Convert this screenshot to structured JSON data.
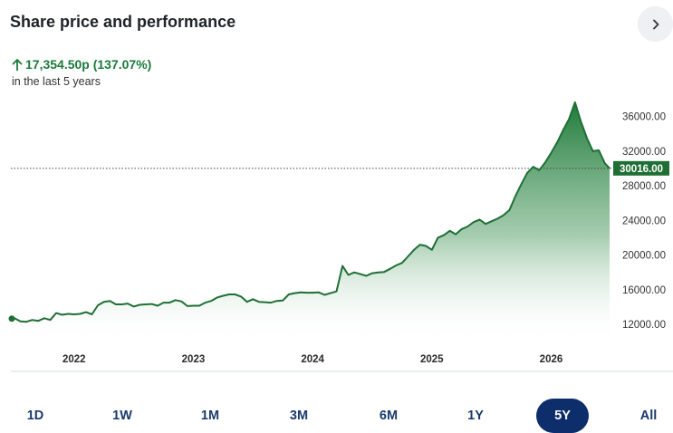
{
  "header": {
    "title": "Share price and performance"
  },
  "performance": {
    "change_text": "17,354.50p (137.07%)",
    "period_text": "in the last 5 years",
    "direction": "up"
  },
  "colors": {
    "accent_green": "#1a7a3a",
    "line_green": "#1f6f35",
    "active_button": "#0d2d6b",
    "button_text": "#1a3a6b"
  },
  "chart_data": {
    "type": "area",
    "title": "",
    "xlabel": "",
    "ylabel": "",
    "x_ticks": [
      "2022",
      "2023",
      "2024",
      "2025",
      "2026"
    ],
    "y_ticks": [
      "12000.00",
      "16000.00",
      "20000.00",
      "24000.00",
      "28000.00",
      "32000.00",
      "36000.00"
    ],
    "ylim": [
      9700,
      37950
    ],
    "xlim": [
      2021.47,
      2026.49
    ],
    "current_price_label": "30016.00",
    "current_price": 30016,
    "series": [
      {
        "x": [
          2021.47,
          2021.5,
          2021.55,
          2021.6,
          2021.65,
          2021.7,
          2021.75,
          2021.8,
          2021.85,
          2021.9,
          2021.95,
          2022.0,
          2022.05,
          2022.1,
          2022.15,
          2022.2,
          2022.25,
          2022.3,
          2022.35,
          2022.4,
          2022.45,
          2022.5,
          2022.55,
          2022.6,
          2022.65,
          2022.7,
          2022.75,
          2022.8,
          2022.85,
          2022.9,
          2022.95,
          2023.0,
          2023.05,
          2023.1,
          2023.15,
          2023.2,
          2023.25,
          2023.3,
          2023.35,
          2023.4,
          2023.45,
          2023.5,
          2023.55,
          2023.6,
          2023.65,
          2023.7,
          2023.75,
          2023.8,
          2023.85,
          2023.9,
          2023.95,
          2024.0,
          2024.05,
          2024.1,
          2024.15,
          2024.2,
          2024.25,
          2024.3,
          2024.35,
          2024.4,
          2024.45,
          2024.5,
          2024.55,
          2024.6,
          2024.65,
          2024.7,
          2024.75,
          2024.8,
          2024.85,
          2024.9,
          2024.95,
          2025.0,
          2025.05,
          2025.1,
          2025.15,
          2025.2,
          2025.25,
          2025.3,
          2025.35,
          2025.4,
          2025.45,
          2025.5,
          2025.55,
          2025.6,
          2025.65,
          2025.7,
          2025.75,
          2025.8,
          2025.85,
          2025.9,
          2025.95,
          2026.0,
          2026.05,
          2026.1,
          2026.15,
          2026.2,
          2026.25,
          2026.3,
          2026.35,
          2026.4,
          2026.45,
          2026.49
        ],
        "y": [
          12650,
          12700,
          12350,
          12300,
          12500,
          12400,
          12700,
          12500,
          13300,
          13100,
          13200,
          13150,
          13200,
          13400,
          13150,
          14200,
          14600,
          14700,
          14300,
          14300,
          14400,
          14050,
          14250,
          14300,
          14350,
          14150,
          14500,
          14500,
          14800,
          14650,
          14100,
          14150,
          14150,
          14500,
          14700,
          15100,
          15300,
          15450,
          15450,
          15200,
          14600,
          14900,
          14600,
          14550,
          14500,
          14700,
          14750,
          15450,
          15600,
          15700,
          15650,
          15650,
          15700,
          15400,
          15600,
          15800,
          18750,
          17700,
          18000,
          17800,
          17600,
          17900,
          18000,
          18050,
          18400,
          18800,
          19100,
          19850,
          20600,
          21200,
          21050,
          20600,
          22000,
          22300,
          22800,
          22400,
          23000,
          23300,
          23800,
          24100,
          23600,
          23900,
          24200,
          24600,
          25200,
          26800,
          28200,
          29500,
          30200,
          29800,
          30700,
          31800,
          33000,
          34400,
          35700,
          37650,
          35400,
          33500,
          32000,
          32100,
          30600,
          30016
        ]
      }
    ]
  },
  "time_ranges": {
    "items": [
      "1D",
      "1W",
      "1M",
      "3M",
      "6M",
      "1Y",
      "5Y",
      "All"
    ],
    "active": "5Y"
  }
}
